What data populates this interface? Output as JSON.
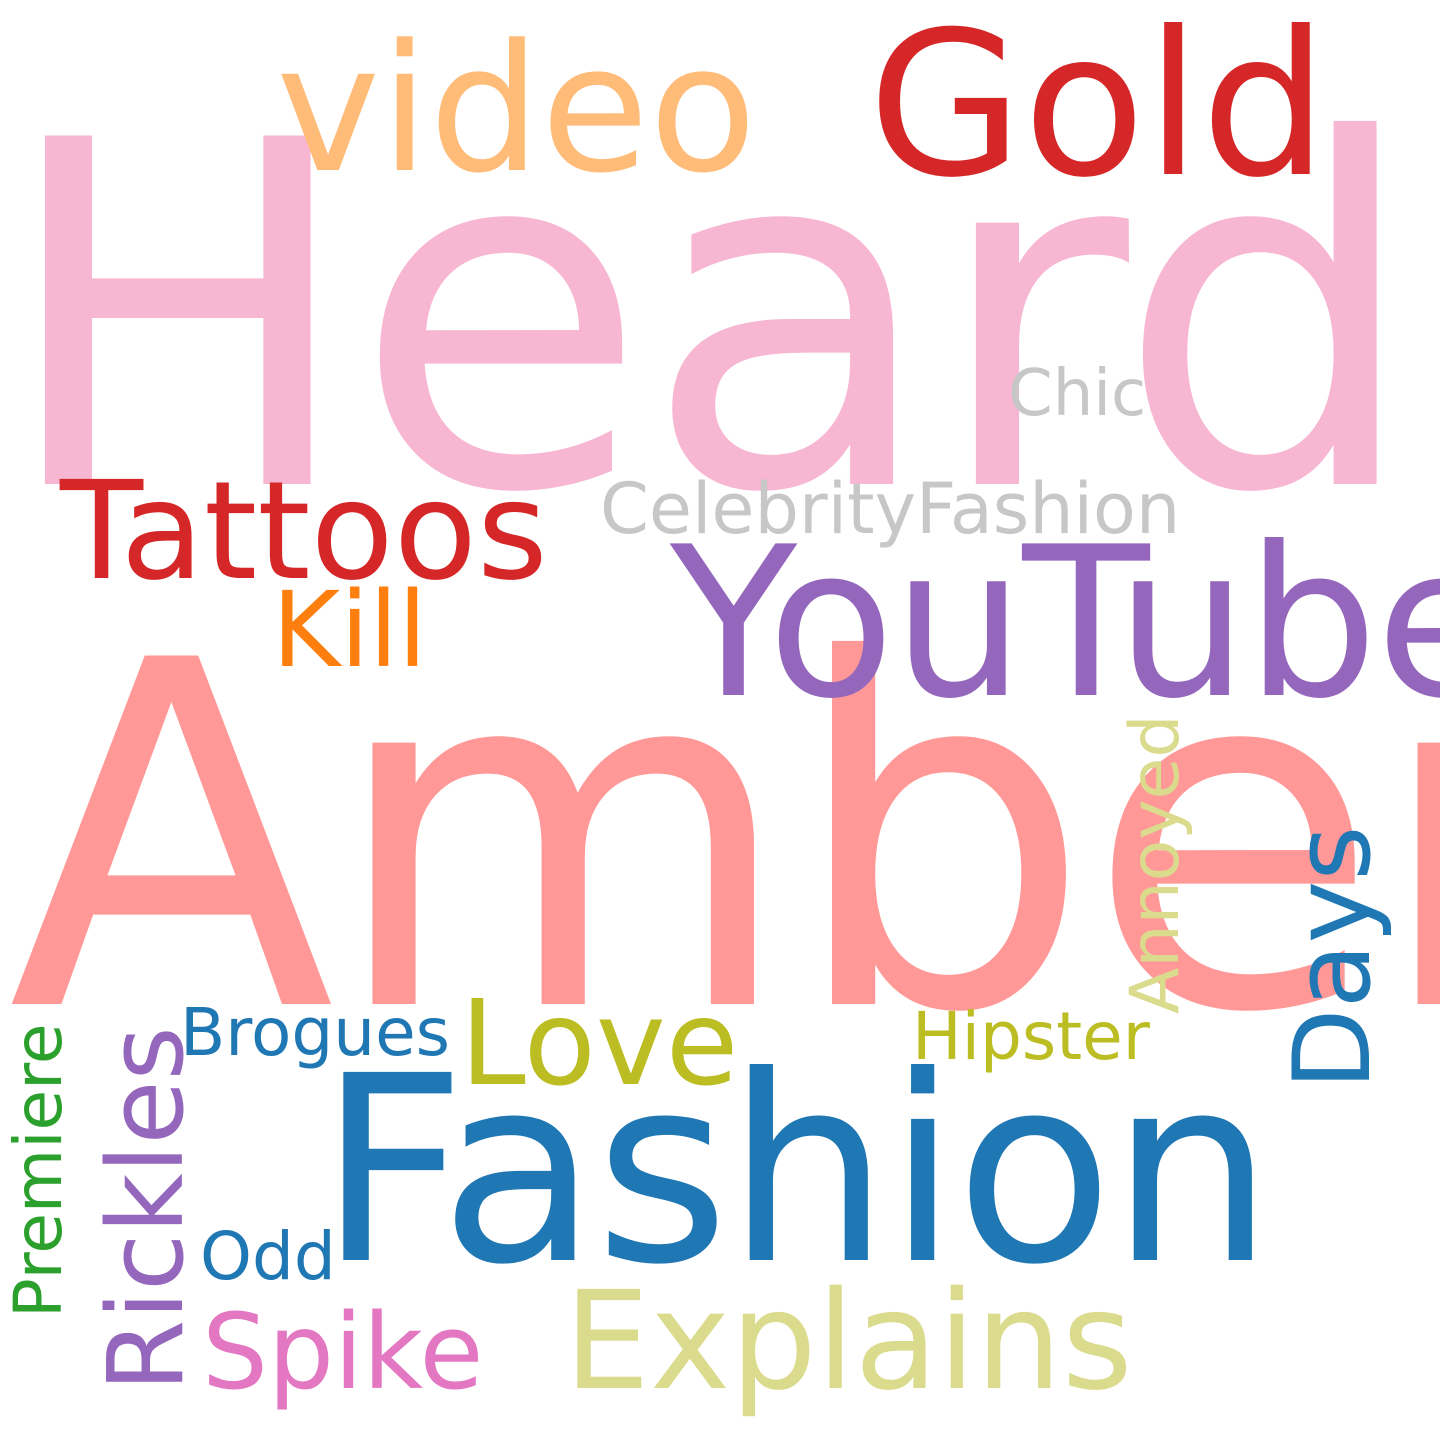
{
  "words": {
    "heard": {
      "text": "Heard",
      "color": "#f7b6d2"
    },
    "amber": {
      "text": "Amber",
      "color": "#ff9896"
    },
    "fashion": {
      "text": "Fashion",
      "color": "#1f77b4"
    },
    "youtube": {
      "text": "YouTube",
      "color": "#9467bd"
    },
    "gold": {
      "text": "Gold",
      "color": "#d62728"
    },
    "video": {
      "text": "video",
      "color": "#ffbb78"
    },
    "tattoos": {
      "text": "Tattoos",
      "color": "#d62728"
    },
    "explains": {
      "text": "Explains",
      "color": "#dbdb8d"
    },
    "love": {
      "text": "Love",
      "color": "#bcbd22"
    },
    "kill": {
      "text": "Kill",
      "color": "#ff7f0e"
    },
    "spike": {
      "text": "Spike",
      "color": "#e377c2"
    },
    "chic": {
      "text": "Chic",
      "color": "#c7c7c7"
    },
    "celebrity_fashion": {
      "text": "CelebrityFashion",
      "color": "#c7c7c7"
    },
    "brogues": {
      "text": "Brogues",
      "color": "#1f77b4"
    },
    "hipster": {
      "text": "Hipster",
      "color": "#bcbd22"
    },
    "odd": {
      "text": "Odd",
      "color": "#1f77b4"
    },
    "rickles": {
      "text": "Rickles",
      "color": "#9467bd"
    },
    "days": {
      "text": "Days",
      "color": "#1f77b4"
    },
    "annoyed": {
      "text": "Annoyed",
      "color": "#dbdb8d"
    },
    "premiere": {
      "text": "Premiere",
      "color": "#2ca02c"
    }
  }
}
